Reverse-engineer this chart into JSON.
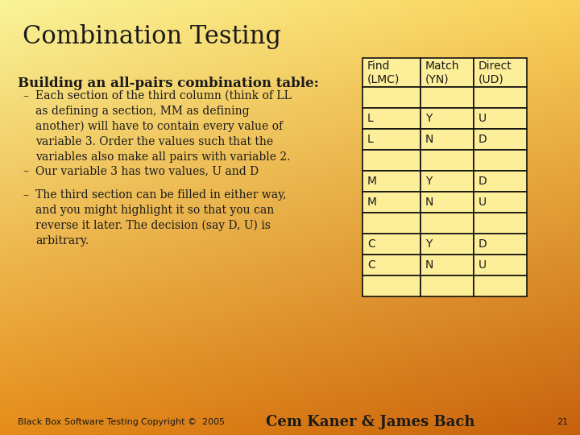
{
  "title": "Combination Testing",
  "subtitle": "Building an all-pairs combination table:",
  "bullets": [
    "Each section of the third column (think of LL\nas defining a section, MM as defining\nanother) will have to contain every value of\nvariable 3. Order the values such that the\nvariables also make all pairs with variable 2.",
    "Our variable 3 has two values, U and D",
    "The third section can be filled in either way,\nand you might highlight it so that you can\nreverse it later. The decision (say D, U) is\narbitrary."
  ],
  "footer_left": "Black Box Software Testing",
  "footer_center": "Copyright ©  2005",
  "footer_right": "Cem Kaner & James Bach",
  "footer_page": "21",
  "table_headers": [
    "Find\n(LMC)",
    "Match\n(YN)",
    "Direct\n(UD)"
  ],
  "table_data": [
    [
      "",
      "",
      ""
    ],
    [
      "L",
      "Y",
      "U"
    ],
    [
      "L",
      "N",
      "D"
    ],
    [
      "",
      "",
      ""
    ],
    [
      "M",
      "Y",
      "D"
    ],
    [
      "M",
      "N",
      "U"
    ],
    [
      "",
      "",
      ""
    ],
    [
      "C",
      "Y",
      "D"
    ],
    [
      "C",
      "N",
      "U"
    ],
    [
      "",
      "",
      ""
    ]
  ],
  "grad_tl": [
    0.98,
    0.96,
    0.6
  ],
  "grad_tr": [
    0.98,
    0.82,
    0.35
  ],
  "grad_bl": [
    0.9,
    0.55,
    0.1
  ],
  "grad_br": [
    0.78,
    0.38,
    0.05
  ],
  "table_bg": "#FDEF99",
  "table_border": "#111111",
  "text_color": "#1a1a1a",
  "title_fontsize": 22,
  "subtitle_fontsize": 12,
  "bullet_fontsize": 10,
  "table_fontsize": 10,
  "footer_fontsize": 8
}
